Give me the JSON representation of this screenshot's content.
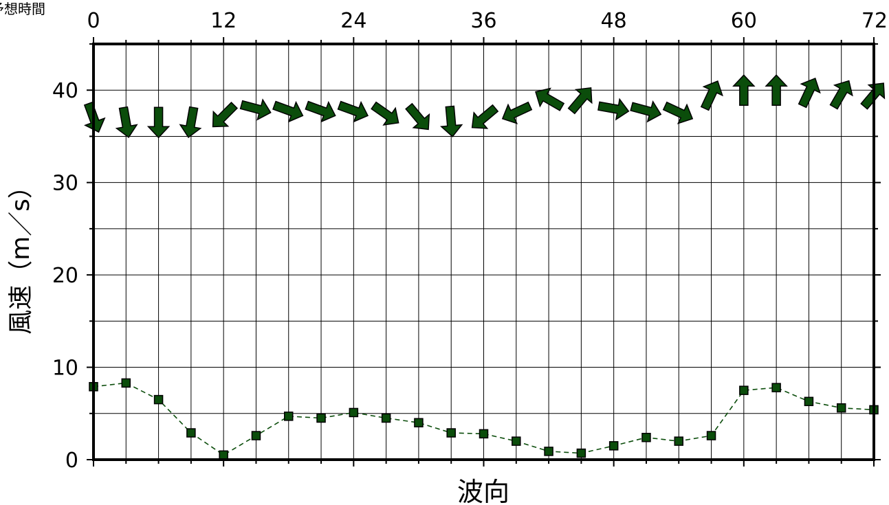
{
  "chart_data": {
    "type": "line",
    "top_axis_label": "予想時間",
    "xlabel": "波向",
    "ylabel": "風速（m／s）",
    "xlim": [
      0,
      72
    ],
    "ylim": [
      0,
      45
    ],
    "x_ticks": [
      0,
      12,
      24,
      36,
      48,
      60,
      72
    ],
    "y_ticks": [
      0,
      10,
      20,
      30,
      40
    ],
    "grid": true,
    "colors": {
      "series": "#0b4d0b",
      "frame": "#000000",
      "grid": "#000000"
    },
    "series": [
      {
        "x": [
          0,
          3,
          6,
          9,
          12,
          15,
          18,
          21,
          24,
          27,
          30,
          33,
          36,
          39,
          42,
          45,
          48,
          51,
          54,
          57,
          60,
          63,
          66,
          69,
          72
        ],
        "values": [
          7.9,
          8.3,
          6.5,
          2.9,
          0.5,
          2.6,
          4.7,
          4.5,
          5.1,
          4.5,
          4.0,
          2.9,
          2.8,
          2.0,
          0.9,
          0.7,
          1.5,
          2.4,
          2.0,
          2.6,
          7.5,
          7.8,
          6.3,
          5.6,
          5.4
        ]
      }
    ],
    "wind_arrows": [
      {
        "x": 0,
        "y": 37.0,
        "direction_deg": 160
      },
      {
        "x": 3,
        "y": 36.5,
        "direction_deg": 170
      },
      {
        "x": 6,
        "y": 36.5,
        "direction_deg": 180
      },
      {
        "x": 9,
        "y": 36.5,
        "direction_deg": 190
      },
      {
        "x": 12,
        "y": 37.2,
        "direction_deg": 225
      },
      {
        "x": 15,
        "y": 38.0,
        "direction_deg": 105
      },
      {
        "x": 18,
        "y": 37.8,
        "direction_deg": 110
      },
      {
        "x": 21,
        "y": 37.8,
        "direction_deg": 110
      },
      {
        "x": 24,
        "y": 37.8,
        "direction_deg": 110
      },
      {
        "x": 27,
        "y": 37.4,
        "direction_deg": 125
      },
      {
        "x": 30,
        "y": 37.0,
        "direction_deg": 140
      },
      {
        "x": 33,
        "y": 36.6,
        "direction_deg": 175
      },
      {
        "x": 36,
        "y": 37.0,
        "direction_deg": 230
      },
      {
        "x": 39,
        "y": 37.6,
        "direction_deg": 245
      },
      {
        "x": 42,
        "y": 39.0,
        "direction_deg": 300
      },
      {
        "x": 45,
        "y": 39.0,
        "direction_deg": 40
      },
      {
        "x": 48,
        "y": 38.0,
        "direction_deg": 100
      },
      {
        "x": 51,
        "y": 37.8,
        "direction_deg": 105
      },
      {
        "x": 54,
        "y": 37.6,
        "direction_deg": 115
      },
      {
        "x": 57,
        "y": 39.5,
        "direction_deg": 25
      },
      {
        "x": 60,
        "y": 40.0,
        "direction_deg": 0
      },
      {
        "x": 63,
        "y": 40.0,
        "direction_deg": 0
      },
      {
        "x": 66,
        "y": 39.8,
        "direction_deg": 25
      },
      {
        "x": 69,
        "y": 39.6,
        "direction_deg": 30
      },
      {
        "x": 72,
        "y": 39.5,
        "direction_deg": 40
      }
    ]
  }
}
